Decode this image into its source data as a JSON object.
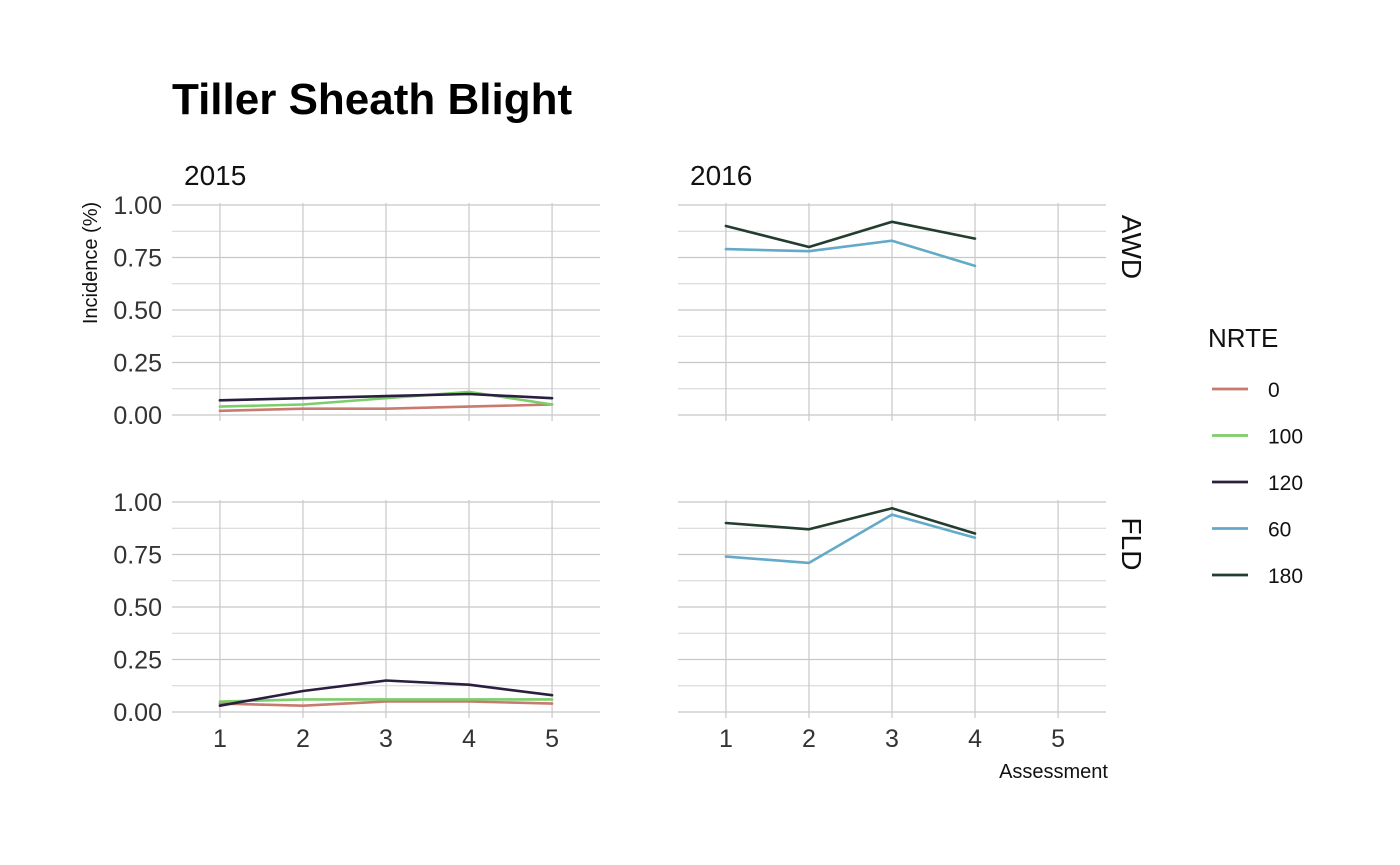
{
  "chart_data": {
    "type": "line",
    "title": "Tiller Sheath Blight",
    "xlabel": "Assessment",
    "ylabel": "Incidence (%)",
    "x": [
      1,
      2,
      3,
      4,
      5
    ],
    "x_ticks": [
      "1",
      "2",
      "3",
      "4",
      "5"
    ],
    "y_ticks": [
      "0.00",
      "0.25",
      "0.50",
      "0.75",
      "1.00"
    ],
    "ylim": [
      0,
      1
    ],
    "xlim": [
      1,
      5
    ],
    "grid": true,
    "legend": {
      "title": "NRTE",
      "placement": "right",
      "entries": [
        {
          "label": "0",
          "color": "#c87a6e"
        },
        {
          "label": "100",
          "color": "#7ccd6b"
        },
        {
          "label": "120",
          "color": "#2a1f3f"
        },
        {
          "label": "60",
          "color": "#64aac8"
        },
        {
          "label": "180",
          "color": "#233d2e"
        }
      ]
    },
    "col_facets": [
      "2015",
      "2016"
    ],
    "row_facets": [
      "AWD",
      "FLD"
    ],
    "panels": [
      {
        "year": "2015",
        "water": "AWD",
        "series": [
          {
            "name": "0",
            "x": [
              1,
              2,
              3,
              4,
              5
            ],
            "values": [
              0.02,
              0.03,
              0.03,
              0.04,
              0.05
            ]
          },
          {
            "name": "100",
            "x": [
              1,
              2,
              3,
              4,
              5
            ],
            "values": [
              0.04,
              0.05,
              0.08,
              0.11,
              0.05
            ]
          },
          {
            "name": "120",
            "x": [
              1,
              2,
              3,
              4,
              5
            ],
            "values": [
              0.07,
              0.08,
              0.09,
              0.1,
              0.08
            ]
          }
        ]
      },
      {
        "year": "2016",
        "water": "AWD",
        "series": [
          {
            "name": "60",
            "x": [
              1,
              2,
              3,
              4
            ],
            "values": [
              0.79,
              0.78,
              0.83,
              0.71
            ]
          },
          {
            "name": "180",
            "x": [
              1,
              2,
              3,
              4
            ],
            "values": [
              0.9,
              0.8,
              0.92,
              0.84
            ]
          }
        ]
      },
      {
        "year": "2015",
        "water": "FLD",
        "series": [
          {
            "name": "0",
            "x": [
              1,
              2,
              3,
              4,
              5
            ],
            "values": [
              0.04,
              0.03,
              0.05,
              0.05,
              0.04
            ]
          },
          {
            "name": "100",
            "x": [
              1,
              2,
              3,
              4,
              5
            ],
            "values": [
              0.05,
              0.06,
              0.06,
              0.06,
              0.06
            ]
          },
          {
            "name": "120",
            "x": [
              1,
              2,
              3,
              4,
              5
            ],
            "values": [
              0.03,
              0.1,
              0.15,
              0.13,
              0.08
            ]
          }
        ]
      },
      {
        "year": "2016",
        "water": "FLD",
        "series": [
          {
            "name": "60",
            "x": [
              1,
              2,
              3,
              4
            ],
            "values": [
              0.74,
              0.71,
              0.94,
              0.83
            ]
          },
          {
            "name": "180",
            "x": [
              1,
              2,
              3,
              4
            ],
            "values": [
              0.9,
              0.87,
              0.97,
              0.85
            ]
          }
        ]
      }
    ]
  }
}
